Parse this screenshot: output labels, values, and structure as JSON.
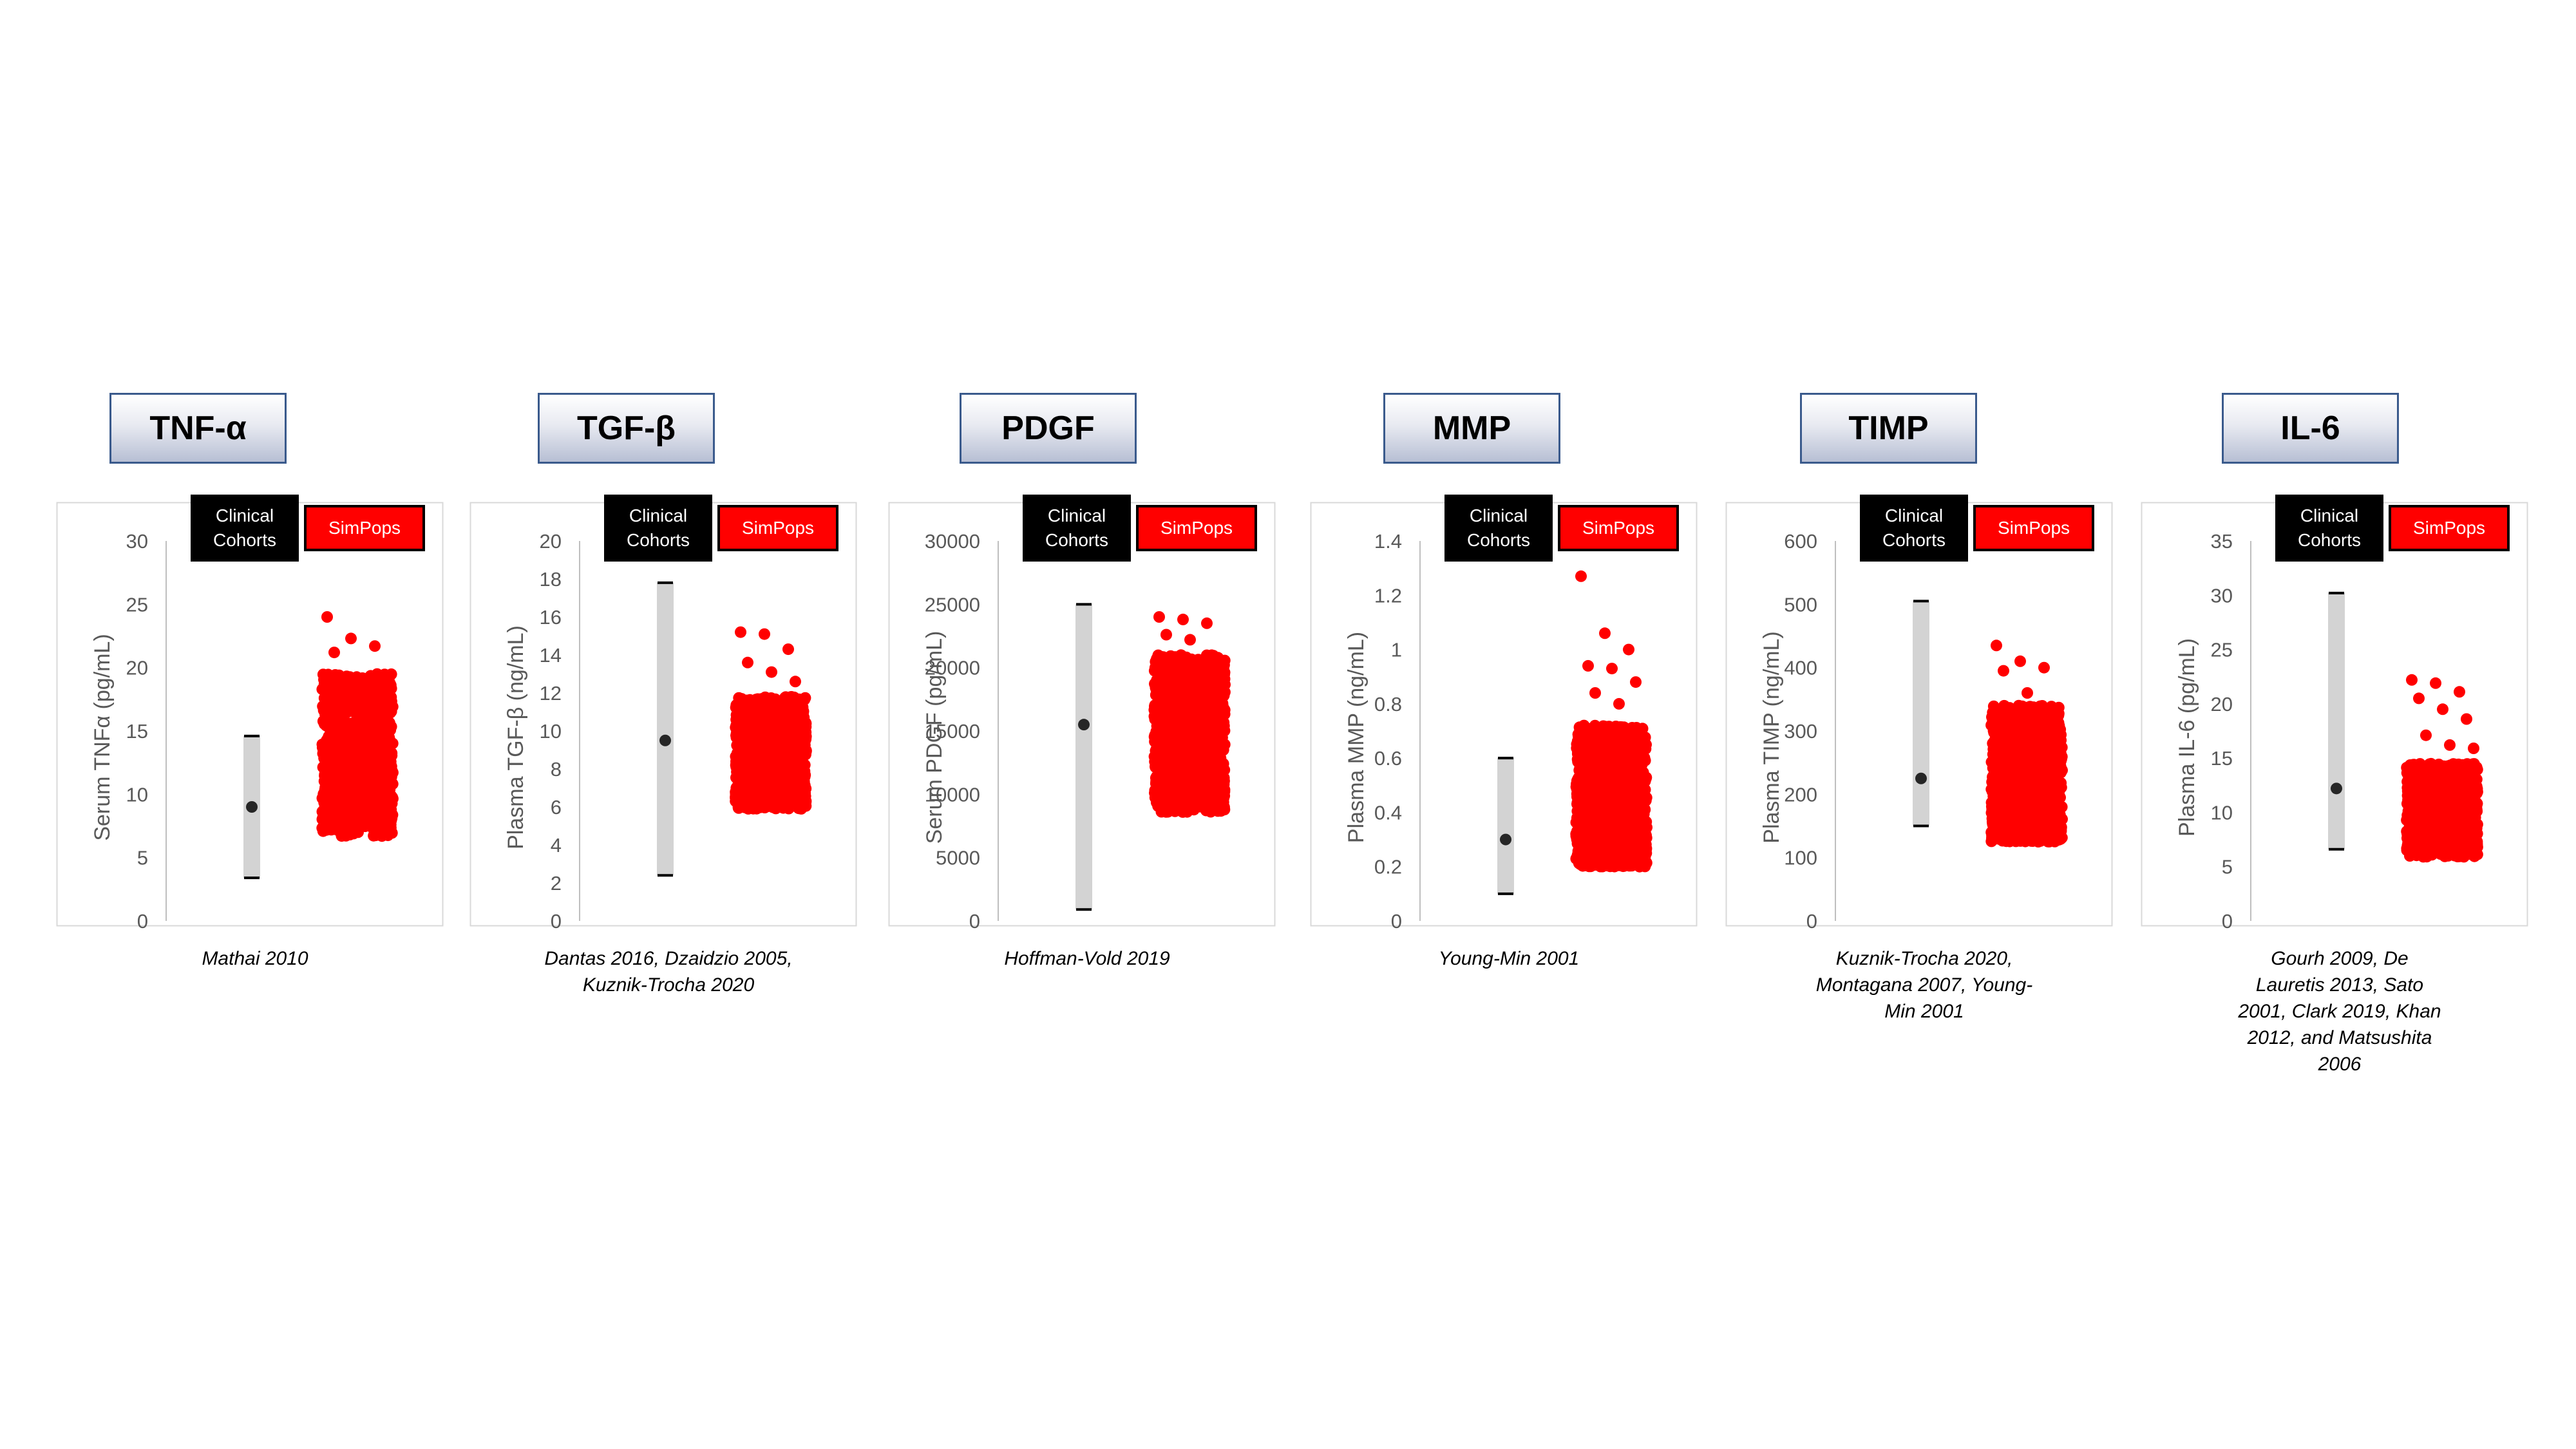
{
  "legend": {
    "clinical_line1": "Clinical",
    "clinical_line2": "Cohorts",
    "simpops": "SimPops"
  },
  "colors": {
    "clinical_bar": "#d3d3d3",
    "clinical_marker": "#262626",
    "simpops": "#ff0000",
    "axis_text": "#595959"
  },
  "chart_data": [
    {
      "type": "scatter",
      "title": "TNF-α",
      "ylabel": "Serum TNFα (pg/mL)",
      "ylim": [
        0,
        30
      ],
      "yticks": [
        0,
        5,
        10,
        15,
        20,
        25,
        30
      ],
      "grid": false,
      "clinical": {
        "min": 3.4,
        "median": 9,
        "max": 14.6
      },
      "simpops": {
        "min": 6.7,
        "max": 24,
        "core_low": 7.8,
        "core_high": 19.5,
        "outliers": [
          24,
          22.3,
          21.7,
          21.2,
          7.0,
          6.7
        ]
      },
      "citation": "Mathai 2010"
    },
    {
      "type": "scatter",
      "title": "TGF-β",
      "ylabel": "Plasma TGF-β (ng/mL)",
      "ylim": [
        0,
        20
      ],
      "yticks": [
        0,
        2,
        4,
        6,
        8,
        10,
        12,
        14,
        16,
        18,
        20
      ],
      "grid": false,
      "clinical": {
        "min": 2.4,
        "median": 9.5,
        "max": 17.8
      },
      "simpops": {
        "min": 5.9,
        "max": 15.2,
        "core_low": 6.2,
        "core_high": 11.8,
        "outliers": [
          15.2,
          15.1,
          14.3,
          13.6,
          13.1,
          12.6
        ]
      },
      "citation": "Dantas 2016, Dzaidzio 2005, Kuznik-Trocha 2020"
    },
    {
      "type": "scatter",
      "title": "PDGF",
      "ylabel": "Serum PDGF (pg/mL)",
      "ylim": [
        0,
        30000
      ],
      "yticks": [
        0,
        5000,
        10000,
        15000,
        20000,
        25000,
        30000
      ],
      "grid": false,
      "clinical": {
        "min": 900,
        "median": 15500,
        "max": 25000
      },
      "simpops": {
        "min": 8600,
        "max": 24000,
        "core_low": 9200,
        "core_high": 21000,
        "outliers": [
          24000,
          23800,
          23500,
          22600,
          22200
        ]
      },
      "citation": "Hoffman-Vold 2019"
    },
    {
      "type": "scatter",
      "title": "MMP",
      "ylabel": "Plasma MMP (ng/mL)",
      "ylim": [
        0,
        1.4
      ],
      "yticks": [
        0,
        0.2,
        0.4,
        0.6,
        0.8,
        1,
        1.2,
        1.4
      ],
      "grid": false,
      "clinical": {
        "min": 0.1,
        "median": 0.3,
        "max": 0.6
      },
      "simpops": {
        "min": 0.2,
        "max": 1.27,
        "core_low": 0.21,
        "core_high": 0.72,
        "outliers": [
          1.27,
          1.06,
          1.0,
          0.94,
          0.93,
          0.88,
          0.84,
          0.8
        ]
      },
      "citation": "Young-Min 2001"
    },
    {
      "type": "scatter",
      "title": "TIMP",
      "ylabel": "Plasma TIMP (ng/mL)",
      "ylim": [
        0,
        600
      ],
      "yticks": [
        0,
        100,
        200,
        300,
        400,
        500,
        600
      ],
      "grid": false,
      "clinical": {
        "min": 150,
        "median": 225,
        "max": 505
      },
      "simpops": {
        "min": 125,
        "max": 435,
        "core_low": 130,
        "core_high": 340,
        "outliers": [
          435,
          410,
          400,
          395,
          360
        ]
      },
      "citation": "Kuznik-Trocha 2020, Montagana 2007, Young-Min 2001"
    },
    {
      "type": "scatter",
      "title": "IL-6",
      "ylabel": "Plasma IL-6 (pg/mL)",
      "ylim": [
        0,
        35
      ],
      "yticks": [
        0,
        5,
        10,
        15,
        20,
        25,
        30,
        35
      ],
      "grid": false,
      "clinical": {
        "min": 6.6,
        "median": 12.2,
        "max": 30.2
      },
      "simpops": {
        "min": 5.9,
        "max": 22.2,
        "core_low": 6.5,
        "core_high": 14.5,
        "outliers": [
          22.2,
          21.9,
          21.1,
          20.5,
          19.5,
          18.6,
          17.1,
          16.2,
          15.9
        ]
      },
      "citation": "Gourh 2009, De Lauretis 2013, Sato 2001, Clark 2019, Khan 2012, and Matsushita 2006"
    }
  ]
}
